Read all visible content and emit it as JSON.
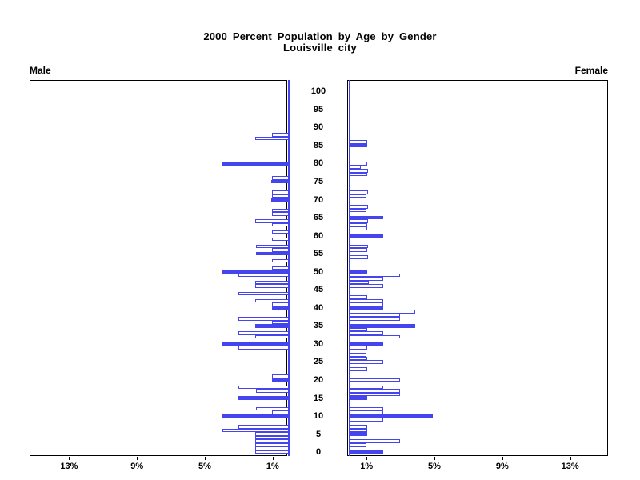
{
  "title": {
    "line1": "2000 Percent Population by Age by Gender",
    "line2": "Louisville city"
  },
  "headers": {
    "male": "Male",
    "female": "Female"
  },
  "colors": {
    "bar_blue": "#4545f0",
    "axis_black": "#000000",
    "bar_fill": "#ffffff",
    "background": "#ffffff"
  },
  "age_axis": {
    "ticks": [
      0,
      5,
      10,
      15,
      20,
      25,
      30,
      35,
      40,
      45,
      50,
      55,
      60,
      65,
      70,
      75,
      80,
      85,
      90,
      95,
      100
    ]
  },
  "pct_axis": {
    "male_ticks": [
      {
        "pct": 13,
        "label": "13%"
      },
      {
        "pct": 9,
        "label": "9%"
      },
      {
        "pct": 5,
        "label": "5%"
      },
      {
        "pct": 1,
        "label": "1%"
      }
    ],
    "female_ticks": [
      {
        "pct": 1,
        "label": "1%"
      },
      {
        "pct": 5,
        "label": "5%"
      },
      {
        "pct": 9,
        "label": "9%"
      },
      {
        "pct": 13,
        "label": "13%"
      }
    ]
  },
  "chart_data": {
    "type": "bar",
    "subtype": "population_pyramid",
    "title": "2000 Percent Population by Age by Gender",
    "subtitle": "Louisville city",
    "x_unit": "percent of population",
    "age_range": [
      0,
      100
    ],
    "age_tick_step": 5,
    "pct_ticks": [
      1,
      5,
      9,
      13
    ],
    "xlim_pct": [
      0,
      15.2
    ],
    "legend": "single-year-of-age bars; solid=true bars are filled blue, others are white with blue outline; male bars extend left, female bars extend right",
    "male_bars": [
      {
        "age": 0,
        "pct": 2.05,
        "solid": false
      },
      {
        "age": 1,
        "pct": 2.05,
        "solid": false
      },
      {
        "age": 2,
        "pct": 2.05,
        "solid": false
      },
      {
        "age": 3,
        "pct": 2.05,
        "solid": false
      },
      {
        "age": 4,
        "pct": 2.05,
        "solid": false
      },
      {
        "age": 5,
        "pct": 2.05,
        "solid": false
      },
      {
        "age": 6,
        "pct": 3.95,
        "solid": false
      },
      {
        "age": 7,
        "pct": 3.0,
        "solid": false
      },
      {
        "age": 10,
        "pct": 4.0,
        "solid": true
      },
      {
        "age": 11,
        "pct": 1.05,
        "solid": false
      },
      {
        "age": 12,
        "pct": 2.0,
        "solid": false
      },
      {
        "age": 15,
        "pct": 3.0,
        "solid": true
      },
      {
        "age": 17,
        "pct": 2.0,
        "solid": false
      },
      {
        "age": 18,
        "pct": 3.0,
        "solid": false
      },
      {
        "age": 20,
        "pct": 1.05,
        "solid": true
      },
      {
        "age": 21,
        "pct": 1.05,
        "solid": false
      },
      {
        "age": 29,
        "pct": 3.0,
        "solid": false
      },
      {
        "age": 30,
        "pct": 4.0,
        "solid": true
      },
      {
        "age": 32,
        "pct": 2.05,
        "solid": false
      },
      {
        "age": 33,
        "pct": 3.0,
        "solid": false
      },
      {
        "age": 35,
        "pct": 2.05,
        "solid": true
      },
      {
        "age": 36,
        "pct": 1.05,
        "solid": false
      },
      {
        "age": 37,
        "pct": 3.0,
        "solid": false
      },
      {
        "age": 40,
        "pct": 1.05,
        "solid": true
      },
      {
        "age": 41,
        "pct": 1.05,
        "solid": false
      },
      {
        "age": 42,
        "pct": 2.05,
        "solid": false
      },
      {
        "age": 44,
        "pct": 3.0,
        "solid": false
      },
      {
        "age": 46,
        "pct": 2.05,
        "solid": false
      },
      {
        "age": 47,
        "pct": 2.05,
        "solid": false
      },
      {
        "age": 49,
        "pct": 3.0,
        "solid": false
      },
      {
        "age": 50,
        "pct": 4.0,
        "solid": true
      },
      {
        "age": 51,
        "pct": 1.05,
        "solid": false
      },
      {
        "age": 53,
        "pct": 1.05,
        "solid": false
      },
      {
        "age": 55,
        "pct": 2.0,
        "solid": true
      },
      {
        "age": 56,
        "pct": 1.05,
        "solid": false
      },
      {
        "age": 57,
        "pct": 2.0,
        "solid": false
      },
      {
        "age": 59,
        "pct": 1.05,
        "solid": false
      },
      {
        "age": 61,
        "pct": 1.05,
        "solid": false
      },
      {
        "age": 63,
        "pct": 1.05,
        "solid": false
      },
      {
        "age": 64,
        "pct": 2.05,
        "solid": false
      },
      {
        "age": 66,
        "pct": 1.05,
        "solid": false
      },
      {
        "age": 67,
        "pct": 1.05,
        "solid": false
      },
      {
        "age": 70,
        "pct": 1.1,
        "solid": true
      },
      {
        "age": 71,
        "pct": 1.05,
        "solid": false
      },
      {
        "age": 72,
        "pct": 1.05,
        "solid": false
      },
      {
        "age": 75,
        "pct": 1.1,
        "solid": true
      },
      {
        "age": 76,
        "pct": 1.05,
        "solid": false
      },
      {
        "age": 80,
        "pct": 4.0,
        "solid": true
      },
      {
        "age": 87,
        "pct": 2.05,
        "solid": false
      },
      {
        "age": 88,
        "pct": 1.05,
        "solid": false
      }
    ],
    "female_bars": [
      {
        "age": 0,
        "pct": 2.0,
        "solid": true
      },
      {
        "age": 1,
        "pct": 1.0,
        "solid": false
      },
      {
        "age": 2,
        "pct": 1.0,
        "solid": false
      },
      {
        "age": 3,
        "pct": 2.95,
        "solid": false
      },
      {
        "age": 5,
        "pct": 1.05,
        "solid": true
      },
      {
        "age": 6,
        "pct": 1.05,
        "solid": false
      },
      {
        "age": 7,
        "pct": 1.05,
        "solid": false
      },
      {
        "age": 9,
        "pct": 2.0,
        "solid": false
      },
      {
        "age": 10,
        "pct": 4.9,
        "solid": true
      },
      {
        "age": 11,
        "pct": 2.0,
        "solid": false
      },
      {
        "age": 12,
        "pct": 2.0,
        "solid": false
      },
      {
        "age": 15,
        "pct": 1.05,
        "solid": true
      },
      {
        "age": 16,
        "pct": 2.95,
        "solid": false
      },
      {
        "age": 17,
        "pct": 2.95,
        "solid": false
      },
      {
        "age": 18,
        "pct": 2.0,
        "solid": false
      },
      {
        "age": 20,
        "pct": 2.95,
        "solid": false
      },
      {
        "age": 23,
        "pct": 1.05,
        "solid": false
      },
      {
        "age": 25,
        "pct": 2.0,
        "solid": false
      },
      {
        "age": 26,
        "pct": 1.05,
        "solid": false
      },
      {
        "age": 27,
        "pct": 1.0,
        "solid": false
      },
      {
        "age": 29,
        "pct": 1.05,
        "solid": false
      },
      {
        "age": 30,
        "pct": 2.0,
        "solid": true
      },
      {
        "age": 32,
        "pct": 2.95,
        "solid": false
      },
      {
        "age": 33,
        "pct": 2.0,
        "solid": false
      },
      {
        "age": 34,
        "pct": 1.05,
        "solid": false
      },
      {
        "age": 35,
        "pct": 3.85,
        "solid": true
      },
      {
        "age": 37,
        "pct": 2.95,
        "solid": false
      },
      {
        "age": 38,
        "pct": 2.95,
        "solid": false
      },
      {
        "age": 39,
        "pct": 3.85,
        "solid": false
      },
      {
        "age": 40,
        "pct": 2.0,
        "solid": true
      },
      {
        "age": 41,
        "pct": 2.0,
        "solid": false
      },
      {
        "age": 42,
        "pct": 2.0,
        "solid": false
      },
      {
        "age": 43,
        "pct": 1.05,
        "solid": false
      },
      {
        "age": 46,
        "pct": 2.0,
        "solid": false
      },
      {
        "age": 47,
        "pct": 1.15,
        "solid": false
      },
      {
        "age": 48,
        "pct": 2.0,
        "solid": false
      },
      {
        "age": 49,
        "pct": 2.95,
        "solid": false
      },
      {
        "age": 50,
        "pct": 1.05,
        "solid": true
      },
      {
        "age": 54,
        "pct": 1.1,
        "solid": false
      },
      {
        "age": 56,
        "pct": 1.05,
        "solid": false
      },
      {
        "age": 57,
        "pct": 1.1,
        "solid": false
      },
      {
        "age": 60,
        "pct": 2.0,
        "solid": true
      },
      {
        "age": 62,
        "pct": 1.05,
        "solid": false
      },
      {
        "age": 63,
        "pct": 1.05,
        "solid": false
      },
      {
        "age": 64,
        "pct": 1.1,
        "solid": false
      },
      {
        "age": 65,
        "pct": 2.0,
        "solid": true
      },
      {
        "age": 67,
        "pct": 1.0,
        "solid": false
      },
      {
        "age": 68,
        "pct": 1.1,
        "solid": false
      },
      {
        "age": 71,
        "pct": 1.0,
        "solid": false
      },
      {
        "age": 72,
        "pct": 1.1,
        "solid": false
      },
      {
        "age": 77,
        "pct": 1.05,
        "solid": false
      },
      {
        "age": 78,
        "pct": 1.1,
        "solid": false
      },
      {
        "age": 79,
        "pct": 0.65,
        "solid": false
      },
      {
        "age": 80,
        "pct": 1.05,
        "solid": false
      },
      {
        "age": 85,
        "pct": 1.05,
        "solid": true
      },
      {
        "age": 86,
        "pct": 1.05,
        "solid": false
      }
    ]
  }
}
